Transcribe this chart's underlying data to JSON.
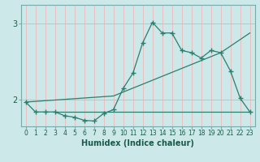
{
  "xlabel": "Humidex (Indice chaleur)",
  "ylabel": "",
  "bg_color": "#cce8e8",
  "grid_color": "#aacccc",
  "line_color": "#2e7d6e",
  "xlim": [
    -0.5,
    23.5
  ],
  "ylim": [
    1.65,
    3.25
  ],
  "yticks": [
    2,
    3
  ],
  "xticks": [
    0,
    1,
    2,
    3,
    4,
    5,
    6,
    7,
    8,
    9,
    10,
    11,
    12,
    13,
    14,
    15,
    16,
    17,
    18,
    19,
    20,
    21,
    22,
    23
  ],
  "series1_x": [
    0,
    1,
    2,
    3,
    4,
    5,
    6,
    7,
    8,
    9,
    10,
    11,
    12,
    13,
    14,
    15,
    16,
    17,
    18,
    19,
    20,
    21,
    22,
    23
  ],
  "series1_y": [
    1.97,
    1.84,
    1.84,
    1.84,
    1.79,
    1.77,
    1.73,
    1.72,
    1.82,
    1.87,
    2.15,
    2.35,
    2.75,
    3.02,
    2.88,
    2.88,
    2.65,
    2.62,
    2.55,
    2.65,
    2.62,
    2.38,
    2.02,
    1.84
  ],
  "series2_x": [
    3,
    23
  ],
  "series2_y": [
    1.84,
    1.84
  ],
  "series3_x": [
    0,
    9,
    20,
    23
  ],
  "series3_y": [
    1.97,
    2.05,
    2.62,
    2.88
  ]
}
